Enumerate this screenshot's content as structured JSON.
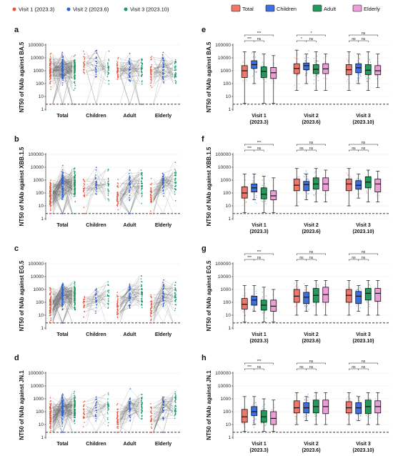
{
  "colors": {
    "visit1": "#e8553e",
    "visit2": "#2f5fd0",
    "visit3": "#1f9a62",
    "total": "#f0756a",
    "children": "#3d6fe0",
    "adult": "#219a5c",
    "elderly": "#ec9ed8"
  },
  "legend_left": [
    {
      "label": "Visit 1 (2023.3)",
      "color_key": "visit1"
    },
    {
      "label": "Visit 2 (2023.6)",
      "color_key": "visit2"
    },
    {
      "label": "Visit 3 (2023.10)",
      "color_key": "visit3"
    }
  ],
  "legend_right": [
    {
      "label": "Total",
      "color_key": "total"
    },
    {
      "label": "Children",
      "color_key": "children"
    },
    {
      "label": "Adult",
      "color_key": "adult"
    },
    {
      "label": "Elderly",
      "color_key": "elderly"
    }
  ],
  "chart_data": [
    {
      "panel": "a",
      "type": "scatter",
      "ylabel": "NT50 of NAb against BA.5",
      "yscale": "log",
      "ylim": [
        1,
        100000
      ],
      "yticks": [
        "1",
        "10",
        "100",
        "1000",
        "10000",
        "100000"
      ],
      "detection_limit": 2.5,
      "categories": [
        "Total",
        "Children",
        "Adult",
        "Elderly"
      ],
      "series": [
        {
          "name": "Visit 1 (2023.3)",
          "median": [
            1000,
            3000,
            900,
            700
          ]
        },
        {
          "name": "Visit 2 (2023.6)",
          "median": [
            1500,
            2500,
            1300,
            1400
          ]
        },
        {
          "name": "Visit 3 (2023.10)",
          "median": [
            1200,
            1700,
            1100,
            1000
          ]
        }
      ]
    },
    {
      "panel": "b",
      "type": "scatter",
      "ylabel": "NT50 of NAb against XBB.1.5",
      "yscale": "log",
      "ylim": [
        1,
        100000
      ],
      "yticks": [
        "1",
        "10",
        "100",
        "1000",
        "10000",
        "100000"
      ],
      "detection_limit": 2.5,
      "categories": [
        "Total",
        "Children",
        "Adult",
        "Elderly"
      ],
      "series": [
        {
          "name": "Visit 1 (2023.3)",
          "median": [
            100,
            250,
            80,
            60
          ]
        },
        {
          "name": "Visit 2 (2023.6)",
          "median": [
            400,
            450,
            500,
            500
          ]
        },
        {
          "name": "Visit 3 (2023.10)",
          "median": [
            500,
            400,
            700,
            500
          ]
        }
      ]
    },
    {
      "panel": "c",
      "type": "scatter",
      "ylabel": "NT50 of NAb against EG.5",
      "yscale": "log",
      "ylim": [
        1,
        100000
      ],
      "yticks": [
        "1",
        "10",
        "100",
        "1000",
        "10000",
        "100000"
      ],
      "detection_limit": 2.5,
      "categories": [
        "Total",
        "Children",
        "Adult",
        "Elderly"
      ],
      "series": [
        {
          "name": "Visit 1 (2023.3)",
          "median": [
            70,
            150,
            60,
            50
          ]
        },
        {
          "name": "Visit 2 (2023.6)",
          "median": [
            300,
            250,
            350,
            400
          ]
        },
        {
          "name": "Visit 3 (2023.10)",
          "median": [
            350,
            300,
            500,
            500
          ]
        }
      ]
    },
    {
      "panel": "d",
      "type": "scatter",
      "ylabel": "NT50 of NAb against JN.1",
      "yscale": "log",
      "ylim": [
        1,
        100000
      ],
      "yticks": [
        "1",
        "10",
        "100",
        "1000",
        "10000",
        "100000"
      ],
      "detection_limit": 2.5,
      "categories": [
        "Total",
        "Children",
        "Adult",
        "Elderly"
      ],
      "series": [
        {
          "name": "Visit 1 (2023.3)",
          "median": [
            40,
            100,
            40,
            30
          ]
        },
        {
          "name": "Visit 2 (2023.6)",
          "median": [
            200,
            200,
            250,
            250
          ]
        },
        {
          "name": "Visit 3 (2023.10)",
          "median": [
            200,
            200,
            250,
            250
          ]
        }
      ]
    },
    {
      "panel": "e",
      "type": "box",
      "ylabel": "NT50 of NAb against BA.5",
      "yscale": "log",
      "ylim": [
        1,
        100000
      ],
      "yticks": [
        "1",
        "10",
        "100",
        "1000",
        "10000",
        "100000"
      ],
      "detection_limit": 2.5,
      "groups": [
        "Visit 1",
        "Visit 2",
        "Visit 3"
      ],
      "group_dates": [
        "(2023.3)",
        "(2023.6)",
        "(2023.10)"
      ],
      "series_names": [
        "Total",
        "Children",
        "Adult",
        "Elderly"
      ],
      "boxes": [
        [
          [
            3,
            300,
            1000,
            2500,
            30000
          ],
          [
            100,
            1500,
            3000,
            6000,
            30000
          ],
          [
            3,
            300,
            900,
            2000,
            20000
          ],
          [
            3,
            250,
            700,
            1800,
            15000
          ]
        ],
        [
          [
            30,
            600,
            1500,
            3500,
            40000
          ],
          [
            100,
            1200,
            2500,
            4000,
            20000
          ],
          [
            30,
            600,
            1300,
            3000,
            30000
          ],
          [
            30,
            600,
            1400,
            3500,
            20000
          ]
        ],
        [
          [
            30,
            500,
            1200,
            3000,
            30000
          ],
          [
            100,
            700,
            1700,
            3500,
            20000
          ],
          [
            30,
            500,
            1100,
            3000,
            30000
          ],
          [
            50,
            500,
            1000,
            2500,
            20000
          ]
        ]
      ],
      "significance": [
        [
          "***",
          "***",
          "ns"
        ],
        [
          "*",
          "*",
          "ns"
        ],
        [
          "ns",
          "ns",
          "ns"
        ]
      ]
    },
    {
      "panel": "f",
      "type": "box",
      "ylabel": "NT50 of NAb against XBB.1.5",
      "yscale": "log",
      "ylim": [
        1,
        100000
      ],
      "yticks": [
        "1",
        "10",
        "100",
        "1000",
        "10000",
        "100000"
      ],
      "detection_limit": 2.5,
      "groups": [
        "Visit 1",
        "Visit 2",
        "Visit 3"
      ],
      "group_dates": [
        "(2023.3)",
        "(2023.6)",
        "(2023.10)"
      ],
      "series_names": [
        "Total",
        "Children",
        "Adult",
        "Elderly"
      ],
      "boxes": [
        [
          [
            3,
            40,
            100,
            300,
            3000
          ],
          [
            30,
            120,
            250,
            500,
            3000
          ],
          [
            3,
            35,
            80,
            250,
            2000
          ],
          [
            3,
            30,
            60,
            150,
            1500
          ]
        ],
        [
          [
            10,
            150,
            400,
            1200,
            8000
          ],
          [
            30,
            150,
            450,
            800,
            3000
          ],
          [
            20,
            200,
            500,
            1500,
            8000
          ],
          [
            20,
            150,
            500,
            1500,
            6000
          ]
        ],
        [
          [
            10,
            150,
            500,
            1200,
            8000
          ],
          [
            40,
            200,
            400,
            900,
            3000
          ],
          [
            20,
            250,
            700,
            1800,
            6000
          ],
          [
            20,
            120,
            500,
            1200,
            5000
          ]
        ]
      ],
      "significance": [
        [
          "***",
          "***",
          "ns"
        ],
        [
          "ns",
          "ns",
          "ns"
        ],
        [
          "ns",
          "ns",
          "ns"
        ]
      ]
    },
    {
      "panel": "g",
      "type": "box",
      "ylabel": "NT50 of NAb against EG.5",
      "yscale": "log",
      "ylim": [
        1,
        100000
      ],
      "yticks": [
        "1",
        "10",
        "100",
        "1000",
        "10000",
        "100000"
      ],
      "detection_limit": 2.5,
      "groups": [
        "Visit 1",
        "Visit 2",
        "Visit 3"
      ],
      "group_dates": [
        "(2023.3)",
        "(2023.6)",
        "(2023.10)"
      ],
      "series_names": [
        "Total",
        "Children",
        "Adult",
        "Elderly"
      ],
      "boxes": [
        [
          [
            3,
            30,
            70,
            200,
            2000
          ],
          [
            20,
            60,
            150,
            300,
            2000
          ],
          [
            3,
            25,
            60,
            150,
            1500
          ],
          [
            3,
            20,
            50,
            150,
            1000
          ]
        ],
        [
          [
            10,
            100,
            300,
            1000,
            5000
          ],
          [
            20,
            80,
            250,
            600,
            2000
          ],
          [
            10,
            100,
            350,
            1200,
            5000
          ],
          [
            10,
            100,
            400,
            1500,
            5000
          ]
        ],
        [
          [
            10,
            100,
            350,
            1000,
            5000
          ],
          [
            20,
            80,
            300,
            700,
            2000
          ],
          [
            10,
            150,
            500,
            1200,
            5000
          ],
          [
            10,
            120,
            500,
            1200,
            5000
          ]
        ]
      ],
      "significance": [
        [
          "***",
          "***",
          "ns"
        ],
        [
          "ns",
          "ns",
          "ns"
        ],
        [
          "ns",
          "ns",
          "ns"
        ]
      ]
    },
    {
      "panel": "h",
      "type": "box",
      "ylabel": "NT50 of NAb against JN.1",
      "yscale": "log",
      "ylim": [
        1,
        100000
      ],
      "yticks": [
        "1",
        "10",
        "100",
        "1000",
        "10000",
        "100000"
      ],
      "detection_limit": 2.5,
      "groups": [
        "Visit 1",
        "Visit 2",
        "Visit 3"
      ],
      "group_dates": [
        "(2023.3)",
        "(2023.6)",
        "(2023.10)"
      ],
      "series_names": [
        "Total",
        "Children",
        "Adult",
        "Elderly"
      ],
      "boxes": [
        [
          [
            3,
            15,
            40,
            150,
            1500
          ],
          [
            10,
            50,
            100,
            250,
            1500
          ],
          [
            3,
            15,
            40,
            120,
            1000
          ],
          [
            3,
            10,
            30,
            100,
            800
          ]
        ],
        [
          [
            10,
            80,
            200,
            700,
            3000
          ],
          [
            20,
            80,
            200,
            500,
            1500
          ],
          [
            10,
            80,
            250,
            800,
            3000
          ],
          [
            10,
            70,
            250,
            800,
            3000
          ]
        ],
        [
          [
            10,
            80,
            200,
            600,
            3000
          ],
          [
            20,
            70,
            200,
            500,
            1500
          ],
          [
            10,
            70,
            250,
            800,
            3000
          ],
          [
            10,
            80,
            250,
            700,
            3000
          ]
        ]
      ],
      "significance": [
        [
          "***",
          "***",
          "ns"
        ],
        [
          "ns",
          "ns",
          "ns"
        ],
        [
          "ns",
          "ns",
          "ns"
        ]
      ]
    }
  ]
}
